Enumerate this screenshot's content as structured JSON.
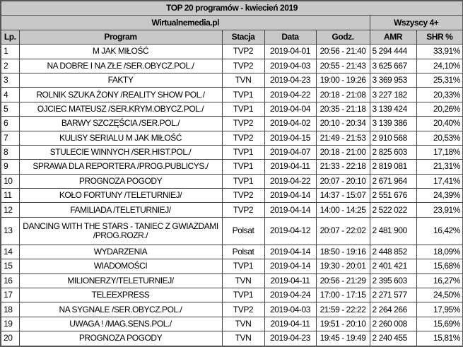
{
  "title": "TOP 20 programów - kwiecień 2019",
  "source": "Wirtualnemedia.pl",
  "group_label": "Wszyscy 4+",
  "columns": [
    "Lp.",
    "Program",
    "Stacja",
    "Data",
    "Godz.",
    "AMR",
    "SHR %"
  ],
  "rows": [
    {
      "lp": "1",
      "program": "M JAK MIŁOŚĆ",
      "stacja": "TVP2",
      "data": "2019-04-01",
      "godz": "20:56 - 21:40",
      "amr": "5 294 444",
      "shr": "33,91%"
    },
    {
      "lp": "2",
      "program": "NA DOBRE I NA ZŁE /SER.OBYCZ.POL./",
      "stacja": "TVP2",
      "data": "2019-04-03",
      "godz": "20:55 - 21:43",
      "amr": "3 625 667",
      "shr": "24,10%"
    },
    {
      "lp": "3",
      "program": "FAKTY",
      "stacja": "TVN",
      "data": "2019-04-23",
      "godz": "19:00 - 19:26",
      "amr": "3 369 953",
      "shr": "25,31%"
    },
    {
      "lp": "4",
      "program": "ROLNIK SZUKA ŻONY /REALITY SHOW POL./",
      "stacja": "TVP1",
      "data": "2019-04-22",
      "godz": "20:18 - 21:08",
      "amr": "3 227 182",
      "shr": "20,33%"
    },
    {
      "lp": "5",
      "program": "OJCIEC MATEUSZ /SER.KRYM.OBYCZ.POL./",
      "stacja": "TVP1",
      "data": "2019-04-04",
      "godz": "20:35 - 21:18",
      "amr": "3 139 424",
      "shr": "20,26%"
    },
    {
      "lp": "6",
      "program": "BARWY SZCZĘŚCIA /SER.POL./",
      "stacja": "TVP2",
      "data": "2019-04-02",
      "godz": "20:10 - 20:34",
      "amr": "3 139 386",
      "shr": "20,40%"
    },
    {
      "lp": "7",
      "program": "KULISY SERIALU M JAK MIŁOŚĆ",
      "stacja": "TVP2",
      "data": "2019-04-15",
      "godz": "21:49 - 21:53",
      "amr": "2 910 568",
      "shr": "20,53%"
    },
    {
      "lp": "8",
      "program": "STULECIE WINNYCH /SER.HIST.POL./",
      "stacja": "TVP1",
      "data": "2019-04-07",
      "godz": "20:18 - 21:00",
      "amr": "2 825 603",
      "shr": "17,18%"
    },
    {
      "lp": "9",
      "program": "SPRAWA DLA REPORTERA /PROG.PUBLICYS./",
      "stacja": "TVP1",
      "data": "2019-04-11",
      "godz": "21:33 - 22:18",
      "amr": "2 819 081",
      "shr": "21,31%"
    },
    {
      "lp": "10",
      "program": "PROGNOZA POGODY",
      "stacja": "TVP1",
      "data": "2019-04-22",
      "godz": "20:07 - 20:10",
      "amr": "2 671 964",
      "shr": "17,41%"
    },
    {
      "lp": "11",
      "program": "KOŁO FORTUNY /TELETURNIEJ/",
      "stacja": "TVP2",
      "data": "2019-04-14",
      "godz": "14:37 - 15:07",
      "amr": "2 551 676",
      "shr": "24,39%"
    },
    {
      "lp": "12",
      "program": "FAMILIADA /TELETURNIEJ/",
      "stacja": "TVP2",
      "data": "2019-04-14",
      "godz": "14:00 - 14:25",
      "amr": "2 522 022",
      "shr": "23,91%"
    },
    {
      "lp": "13",
      "program": "DANCING WITH THE STARS - TANIEC Z GWIAZDAMI /PROG.ROZR./",
      "stacja": "Polsat",
      "data": "2019-04-12",
      "godz": "20:07 - 22:02",
      "amr": "2 481 900",
      "shr": "16,42%"
    },
    {
      "lp": "14",
      "program": "WYDARZENIA",
      "stacja": "Polsat",
      "data": "2019-04-14",
      "godz": "18:50 - 19:16",
      "amr": "2 448 852",
      "shr": "18,09%"
    },
    {
      "lp": "15",
      "program": "WIADOMOŚCI",
      "stacja": "TVP1",
      "data": "2019-04-14",
      "godz": "19:30 - 20:01",
      "amr": "2 401 421",
      "shr": "15,68%"
    },
    {
      "lp": "16",
      "program": "MILIONERZY/TELETURNIEJ/",
      "stacja": "TVN",
      "data": "2019-04-11",
      "godz": "20:56 - 21:29",
      "amr": "2 395 603",
      "shr": "16,27%"
    },
    {
      "lp": "17",
      "program": "TELEEXPRESS",
      "stacja": "TVP1",
      "data": "2019-04-24",
      "godz": "17:00 - 17:15",
      "amr": "2 271 577",
      "shr": "24,50%"
    },
    {
      "lp": "18",
      "program": "NA SYGNALE /SER.OBYCZ.POL./",
      "stacja": "TVP2",
      "data": "2019-04-03",
      "godz": "21:59 - 22:22",
      "amr": "2 264 266",
      "shr": "17,95%"
    },
    {
      "lp": "19",
      "program": "UWAGA ! /MAG.SENS.POL./",
      "stacja": "TVN",
      "data": "2019-04-11",
      "godz": "19:51 - 20:10",
      "amr": "2 260 008",
      "shr": "15,69%"
    },
    {
      "lp": "20",
      "program": "PROGNOZA POGODY",
      "stacja": "TVN",
      "data": "2019-04-23",
      "godz": "19:45 - 19:49",
      "amr": "2 240 455",
      "shr": "15,81%"
    }
  ]
}
